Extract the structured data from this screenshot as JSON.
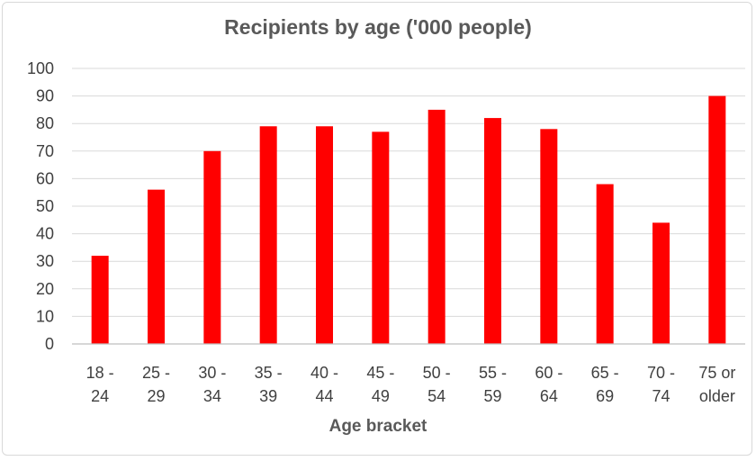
{
  "chart_data": {
    "type": "bar",
    "title": "Recipients by age ('000 people)",
    "xlabel": "Age bracket",
    "ylabel": "",
    "categories": [
      [
        "18 -",
        "24"
      ],
      [
        "25 -",
        "29"
      ],
      [
        "30 -",
        "34"
      ],
      [
        "35 -",
        "39"
      ],
      [
        "40 -",
        "44"
      ],
      [
        "45 -",
        "49"
      ],
      [
        "50 -",
        "54"
      ],
      [
        "55 -",
        "59"
      ],
      [
        "60 -",
        "64"
      ],
      [
        "65 -",
        "69"
      ],
      [
        "70 -",
        "74"
      ],
      [
        "75 or",
        "older"
      ]
    ],
    "values": [
      32,
      56,
      70,
      79,
      79,
      77,
      85,
      82,
      78,
      58,
      44,
      90
    ],
    "ylim": [
      0,
      100
    ],
    "yticks": [
      0,
      10,
      20,
      30,
      40,
      50,
      60,
      70,
      80,
      90,
      100
    ],
    "grid": true,
    "legend": "none",
    "colors": {
      "bar": "#ff0000",
      "grid": "#d9d9d9",
      "axis": "#bfbfbf",
      "text": "#404040",
      "title": "#595959"
    }
  }
}
